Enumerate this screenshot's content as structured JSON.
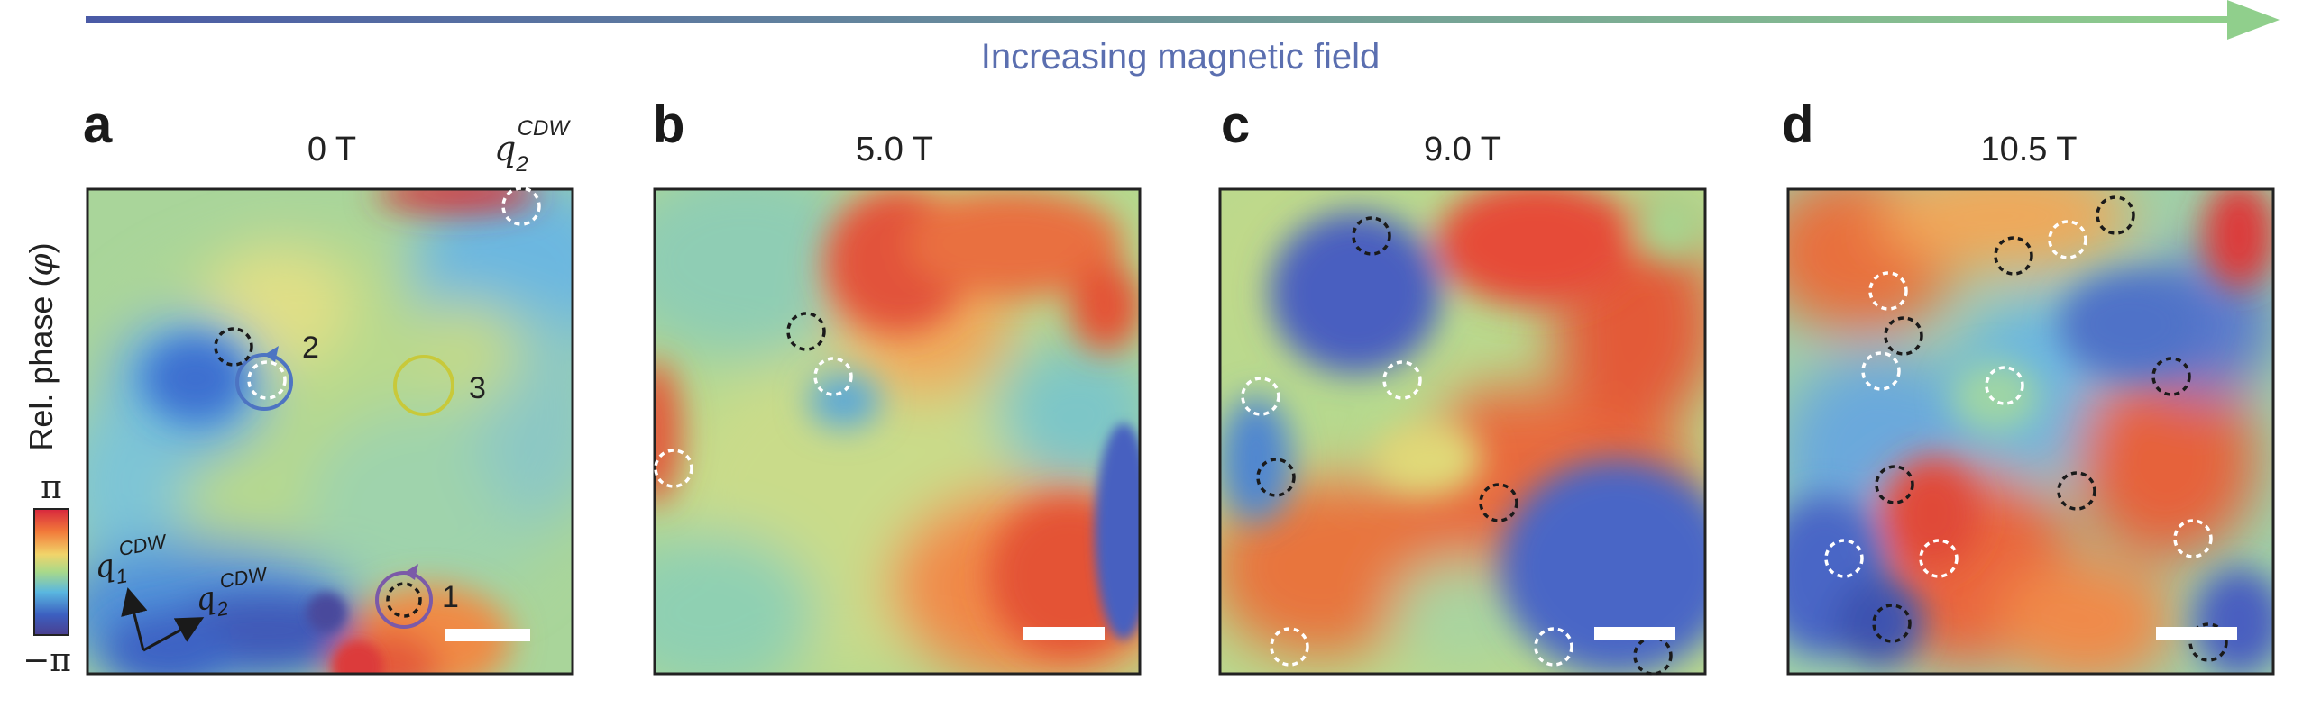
{
  "header": {
    "direction_label": "Increasing magnetic field",
    "arrow_gradient": [
      "#4a5aa6",
      "#90cf8c"
    ]
  },
  "axis": {
    "ylabel_prefix": "Rel. phase (",
    "ylabel_symbol": "φ",
    "ylabel_suffix": ")"
  },
  "colorbar": {
    "max_label": "π",
    "min_label": "−π",
    "colors": [
      "#d7263d",
      "#f27a3a",
      "#f1d46a",
      "#a8d98a",
      "#5ab7e0",
      "#3c5fc0",
      "#4a3f8f"
    ]
  },
  "panels": [
    {
      "letter": "a",
      "field": "0 T",
      "q_label": {
        "base": "q",
        "sub": "2",
        "sup": "CDW"
      },
      "path_labels": [
        "2",
        "3",
        "1"
      ],
      "vector_labels": [
        {
          "base": "q",
          "sub": "1",
          "sup": "CDW"
        },
        {
          "base": "q",
          "sub": "2",
          "sup": "CDW"
        }
      ]
    },
    {
      "letter": "b",
      "field": "5.0 T"
    },
    {
      "letter": "c",
      "field": "9.0 T"
    },
    {
      "letter": "d",
      "field": "10.5 T"
    }
  ],
  "annotation_colors": {
    "loop_1": "#7b5aa8",
    "loop_2": "#4d74c2",
    "loop_3": "#c8c93a",
    "vortex": "#1a1a1a",
    "antivortex": "#ffffff"
  }
}
